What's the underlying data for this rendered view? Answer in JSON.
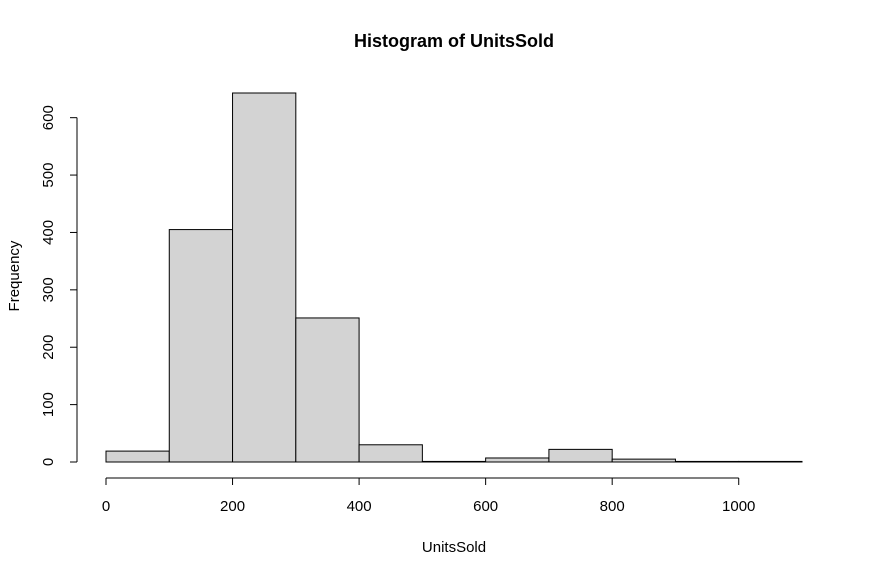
{
  "chart_data": {
    "type": "bar",
    "title": "Histogram of UnitsSold",
    "xlabel": "UnitsSold",
    "ylabel": "Frequency",
    "bins": [
      {
        "start": 0,
        "end": 100,
        "count": 19
      },
      {
        "start": 100,
        "end": 200,
        "count": 405
      },
      {
        "start": 200,
        "end": 300,
        "count": 643
      },
      {
        "start": 300,
        "end": 400,
        "count": 251
      },
      {
        "start": 400,
        "end": 500,
        "count": 30
      },
      {
        "start": 500,
        "end": 600,
        "count": 1
      },
      {
        "start": 600,
        "end": 700,
        "count": 7
      },
      {
        "start": 700,
        "end": 800,
        "count": 22
      },
      {
        "start": 800,
        "end": 900,
        "count": 5
      },
      {
        "start": 900,
        "end": 1000,
        "count": 1
      },
      {
        "start": 1000,
        "end": 1100,
        "count": 1
      }
    ],
    "xlim": [
      0,
      1100
    ],
    "ylim": [
      0,
      643
    ],
    "x_ticks": [
      0,
      200,
      400,
      600,
      800,
      1000
    ],
    "y_ticks": [
      0,
      100,
      200,
      300,
      400,
      500,
      600
    ],
    "bar_fill": "#d3d3d3",
    "bar_stroke": "#000000",
    "grid": false,
    "legend": "none"
  }
}
